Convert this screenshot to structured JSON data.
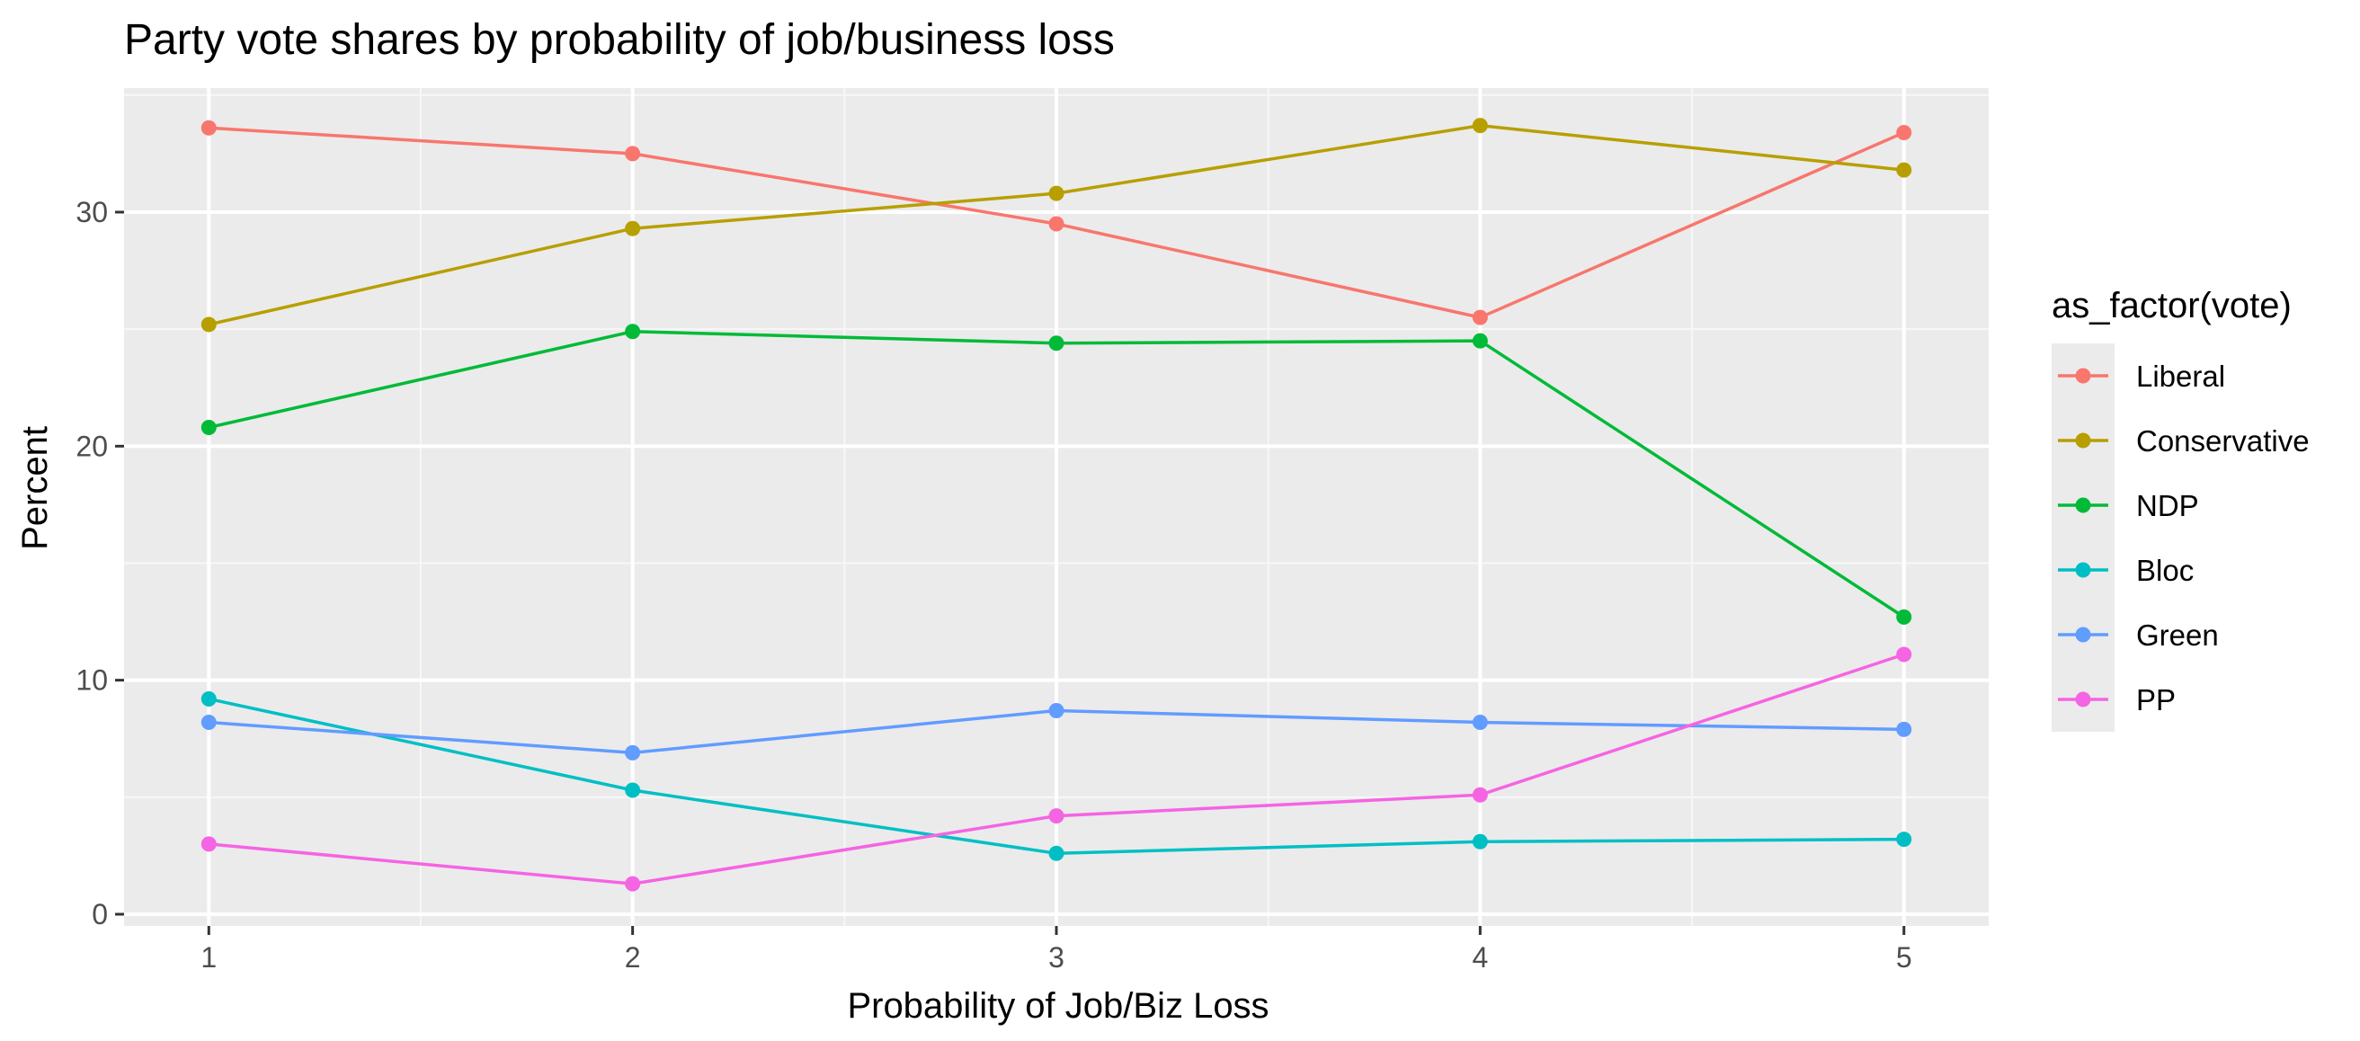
{
  "chart_data": {
    "type": "line",
    "title": "Party vote shares by probability of job/business loss",
    "xlabel": "Probability of Job/Biz Loss",
    "ylabel": "Percent",
    "x": [
      1,
      2,
      3,
      4,
      5
    ],
    "xticks": [
      "1",
      "2",
      "3",
      "4",
      "5"
    ],
    "yticks": [
      "0",
      "10",
      "20",
      "30"
    ],
    "xlim": [
      0.8,
      5.2
    ],
    "ylim": [
      -0.5,
      35.3
    ],
    "grid": true,
    "legend_title": "as_factor(vote)",
    "legend_position": "right",
    "series": [
      {
        "name": "Liberal",
        "color": "#F8766D",
        "values": [
          33.6,
          32.5,
          29.5,
          25.5,
          33.4
        ]
      },
      {
        "name": "Conservative",
        "color": "#B79F00",
        "values": [
          25.2,
          29.3,
          30.8,
          33.7,
          31.8
        ]
      },
      {
        "name": "NDP",
        "color": "#00BA38",
        "values": [
          20.8,
          24.9,
          24.4,
          24.5,
          12.7
        ]
      },
      {
        "name": "Bloc",
        "color": "#00BFC4",
        "values": [
          9.2,
          5.3,
          2.6,
          3.1,
          3.2
        ]
      },
      {
        "name": "Green",
        "color": "#619CFF",
        "values": [
          8.2,
          6.9,
          8.7,
          8.2,
          7.9
        ]
      },
      {
        "name": "PP",
        "color": "#F564E3",
        "values": [
          3.0,
          1.3,
          4.2,
          5.1,
          11.1
        ]
      }
    ]
  }
}
